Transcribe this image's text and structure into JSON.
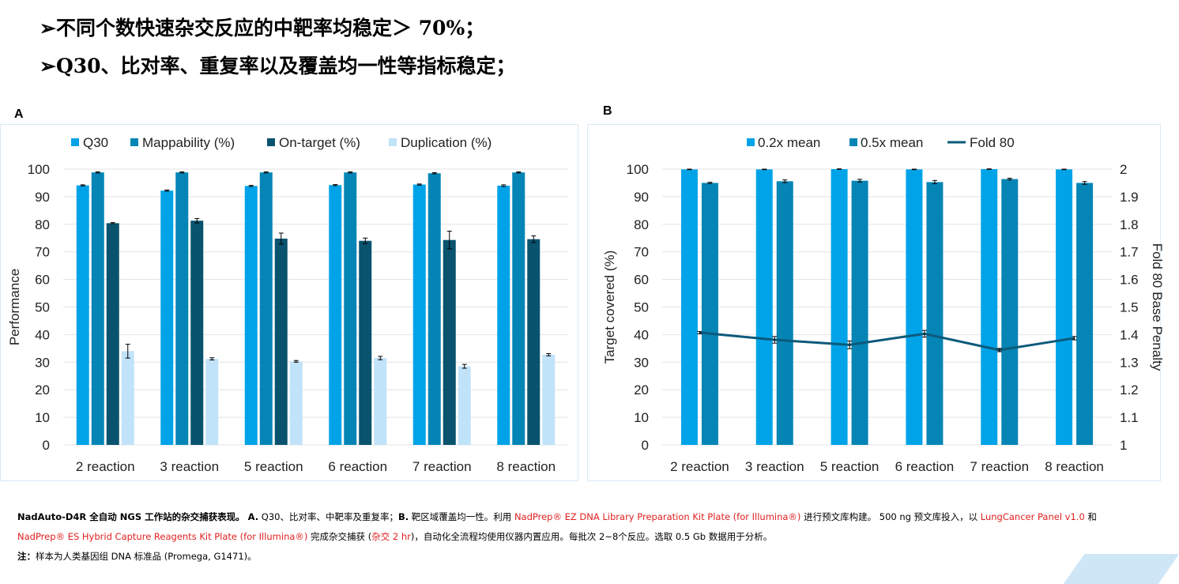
{
  "bullets": [
    "➢不同个数快速杂交反应的中靶率均稳定＞ 70%；",
    "➢Q30、比对率、重复率以及覆盖均一性等指标稳定；"
  ],
  "chart_data": [
    {
      "panel": "A",
      "type": "bar",
      "categories": [
        "2 reaction",
        "3 reaction",
        "5 reaction",
        "6 reaction",
        "7 reaction",
        "8 reaction"
      ],
      "ylabel": "Performance",
      "ylim": [
        0,
        100
      ],
      "yticks": [
        0,
        10,
        20,
        30,
        40,
        50,
        60,
        70,
        80,
        90,
        100
      ],
      "legend_position": "top",
      "grid": true,
      "series": [
        {
          "name": "Q30",
          "color": "#00a3e8",
          "values": [
            94.1,
            92.2,
            93.9,
            94.2,
            94.4,
            94.0
          ],
          "errors": [
            0.2,
            0.2,
            0.2,
            0.2,
            0.2,
            0.3
          ]
        },
        {
          "name": "Mappability (%)",
          "color": "#0585b5",
          "values": [
            98.8,
            98.8,
            98.8,
            98.8,
            98.5,
            98.8
          ],
          "errors": [
            0.2,
            0.2,
            0.2,
            0.2,
            0.2,
            0.2
          ]
        },
        {
          "name": "On-target (%)",
          "color": "#09536e",
          "values": [
            80.4,
            81.3,
            74.8,
            74.0,
            74.3,
            74.6
          ],
          "errors": [
            0.2,
            0.8,
            2.0,
            1.0,
            3.2,
            1.2
          ]
        },
        {
          "name": "Duplication (%)",
          "color": "#c1e3f9",
          "values": [
            34.0,
            31.2,
            30.3,
            31.5,
            28.5,
            32.7
          ],
          "errors": [
            2.5,
            0.4,
            0.3,
            0.6,
            0.7,
            0.4
          ]
        }
      ]
    },
    {
      "panel": "B",
      "type": "bar",
      "categories": [
        "2 reaction",
        "3 reaction",
        "5 reaction",
        "6 reaction",
        "7 reaction",
        "8 reaction"
      ],
      "ylabel": "Target covered (%)",
      "y2label": "Fold 80 Base Penalty",
      "ylim": [
        0,
        100
      ],
      "yticks": [
        0,
        10,
        20,
        30,
        40,
        50,
        60,
        70,
        80,
        90,
        100
      ],
      "y2lim": [
        1,
        2
      ],
      "y2ticks": [
        "1",
        "1.1",
        "1.2",
        "1.3",
        "1.4",
        "1.5",
        "1.6",
        "1.7",
        "1.8",
        "1.9",
        "2"
      ],
      "legend_position": "top",
      "grid": true,
      "series": [
        {
          "name": "0.2x mean",
          "color": "#00a3e8",
          "values": [
            99.9,
            99.9,
            100.0,
            99.9,
            100.0,
            99.9
          ],
          "errors": [
            0.1,
            0.1,
            0.1,
            0.1,
            0.1,
            0.1
          ]
        },
        {
          "name": "0.5x mean",
          "color": "#0585b5",
          "values": [
            95.0,
            95.6,
            95.8,
            95.3,
            96.4,
            95.0
          ],
          "errors": [
            0.2,
            0.5,
            0.5,
            0.6,
            0.3,
            0.5
          ]
        },
        {
          "name": "Fold 80",
          "type": "line",
          "axis": "secondary",
          "color": "#0b5a7a",
          "values": [
            1.407,
            1.381,
            1.363,
            1.403,
            1.344,
            1.387
          ],
          "errors": [
            0.004,
            0.012,
            0.014,
            0.012,
            0.006,
            0.006
          ]
        }
      ]
    }
  ],
  "caption": {
    "line1": [
      {
        "t": "NadAuto-D4R 全自动 NGS 工作站的杂交捕获表现。",
        "s": "bold"
      },
      {
        "t": " A.",
        "s": "bold"
      },
      {
        "t": " Q30、比对率、中靶率及重复率；",
        "s": ""
      },
      {
        "t": "B.",
        "s": "bold"
      },
      {
        "t": " 靶区域覆盖均一性。利用 ",
        "s": ""
      },
      {
        "t": "NadPrep® EZ DNA Library Preparation Kit Plate (for Illumina®)",
        "s": "red"
      },
      {
        "t": " 进行预文库构建。 500 ng 预文库投入，以 ",
        "s": ""
      },
      {
        "t": "LungCancer Panel v1.0",
        "s": "red"
      },
      {
        "t": " 和",
        "s": ""
      }
    ],
    "line2": [
      {
        "t": "NadPrep® ES Hybrid Capture Reagents Kit Plate (for Illumina®)",
        "s": "red"
      },
      {
        "t": " 完成杂交捕获 (",
        "s": ""
      },
      {
        "t": "杂交 2 hr",
        "s": "red"
      },
      {
        "t": ")，自动化全流程均使用仪器内置应用。每批次 2~8个反应。选取 0.5 Gb 数据用于分析。",
        "s": ""
      }
    ],
    "line3": [
      {
        "t": "注：",
        "s": "bold"
      },
      {
        "t": "样本为人类基因组 DNA 标准品 (Promega, G1471)。",
        "s": ""
      }
    ]
  }
}
